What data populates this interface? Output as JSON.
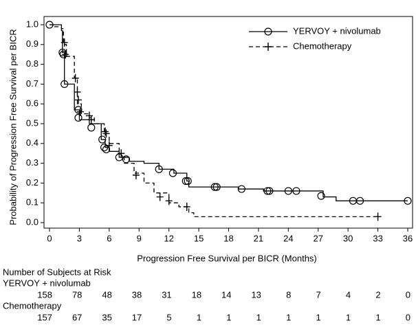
{
  "chart_data": {
    "type": "km",
    "xlabel": "Progression Free Survival per BICR (Months)",
    "ylabel": "Probability of Progression Free Survival per BICR",
    "xlim": [
      0,
      36
    ],
    "ylim": [
      0,
      1
    ],
    "xticks": [
      0,
      3,
      6,
      9,
      12,
      15,
      18,
      21,
      24,
      27,
      30,
      33,
      36
    ],
    "yticks": [
      {
        "value": 0,
        "label": "0.0"
      },
      0.1,
      0.2,
      0.3,
      0.4,
      0.5,
      0.6,
      0.7,
      0.8,
      0.9,
      {
        "value": 1,
        "label": "1.0"
      }
    ],
    "legend": "upper right",
    "series": [
      {
        "name": "YERVOY + nivolumab",
        "color": "#000000",
        "dash": "solid",
        "marker": "circle",
        "x": [
          0,
          1.2,
          1.3,
          1.5,
          2.5,
          3,
          4,
          5.2,
          5.6,
          6,
          7,
          8,
          9.5,
          11,
          12.5,
          13.8,
          14,
          19,
          21.5,
          27.5,
          28.8,
          36
        ],
        "values": [
          1,
          0.97,
          0.86,
          0.7,
          0.57,
          0.52,
          0.5,
          0.42,
          0.38,
          0.36,
          0.33,
          0.31,
          0.3,
          0.27,
          0.25,
          0.21,
          0.18,
          0.17,
          0.16,
          0.13,
          0.11,
          0.11
        ],
        "censored_x": [
          0,
          1.3,
          1.4,
          1.5,
          2.9,
          2.9,
          4.2,
          5.3,
          5.5,
          5.7,
          7,
          7.7,
          11,
          12.4,
          13.7,
          13.9,
          16.6,
          16.8,
          19.3,
          21.9,
          22.1,
          24,
          24.8,
          27.3,
          30.5,
          31.2,
          36
        ],
        "censored_values": [
          1,
          0.86,
          0.85,
          0.7,
          0.57,
          0.53,
          0.48,
          0.42,
          0.38,
          0.37,
          0.33,
          0.32,
          0.27,
          0.25,
          0.21,
          0.21,
          0.18,
          0.18,
          0.17,
          0.16,
          0.16,
          0.16,
          0.16,
          0.135,
          0.11,
          0.11,
          0.11
        ]
      },
      {
        "name": "Chemotherapy",
        "color": "#000000",
        "dash": "dashed",
        "marker": "plus",
        "x": [
          0,
          0.5,
          1.2,
          1.4,
          1.7,
          2.5,
          2.8,
          3.2,
          4,
          4.5,
          5.5,
          6,
          7,
          7.5,
          8.5,
          9.5,
          10.5,
          12,
          13,
          14,
          14.5,
          33
        ],
        "values": [
          1,
          0.99,
          0.98,
          0.9,
          0.84,
          0.73,
          0.6,
          0.55,
          0.53,
          0.5,
          0.45,
          0.4,
          0.35,
          0.3,
          0.25,
          0.2,
          0.15,
          0.1,
          0.08,
          0.05,
          0.03,
          0.03
        ],
        "censored_x": [
          1.5,
          1.6,
          2.6,
          2.8,
          2.9,
          3.1,
          4,
          4.2,
          5.6,
          5.7,
          6,
          7.2,
          8.7,
          11.1,
          12,
          13.8,
          33
        ],
        "censored_values": [
          0.91,
          0.85,
          0.73,
          0.66,
          0.62,
          0.56,
          0.54,
          0.52,
          0.46,
          0.45,
          0.39,
          0.35,
          0.24,
          0.13,
          0.11,
          0.08,
          0.03
        ]
      }
    ]
  },
  "risk_table": {
    "title": "Number of Subjects at Risk",
    "groups": [
      {
        "name": "YERVOY + nivolumab",
        "counts": [
          158,
          78,
          48,
          38,
          31,
          18,
          14,
          13,
          8,
          7,
          4,
          2,
          0
        ]
      },
      {
        "name": "Chemotherapy",
        "counts": [
          157,
          67,
          35,
          17,
          5,
          1,
          1,
          1,
          1,
          1,
          1,
          1,
          0
        ]
      }
    ]
  }
}
